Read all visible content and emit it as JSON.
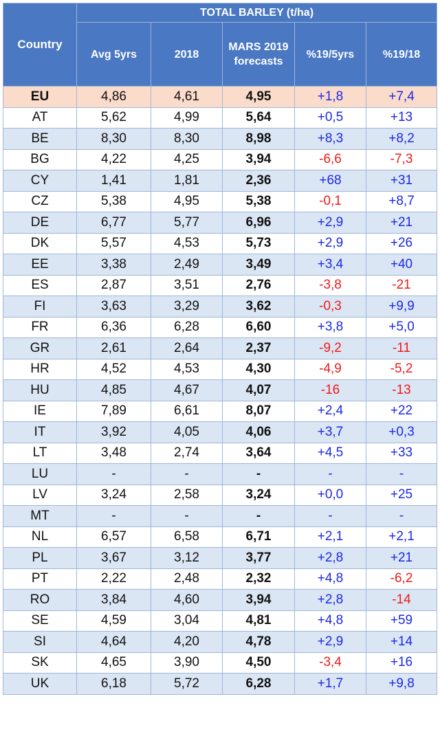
{
  "header": {
    "group_title": "TOTAL BARLEY (t/ha)",
    "col_country": "Country",
    "col_avg": "Avg 5yrs",
    "col_2018": "2018",
    "col_mars_line1": "MARS 2019",
    "col_mars_line2": "forecasts",
    "col_pct5": "%19/5yrs",
    "col_pct18": "%19/18"
  },
  "colors": {
    "header_bg": "#4a78c2",
    "row_alt_bg": "#dbe6f4",
    "eu_row_bg": "#fbdccb",
    "positive": "#1c28e6",
    "negative": "#ee1a1a"
  },
  "rows": [
    {
      "country": "EU",
      "avg": "4,86",
      "y2018": "4,61",
      "mars": "4,95",
      "pct5": "+1,8",
      "pct18": "+7,4"
    },
    {
      "country": "AT",
      "avg": "5,62",
      "y2018": "4,99",
      "mars": "5,64",
      "pct5": "+0,5",
      "pct18": "+13"
    },
    {
      "country": "BE",
      "avg": "8,30",
      "y2018": "8,30",
      "mars": "8,98",
      "pct5": "+8,3",
      "pct18": "+8,2"
    },
    {
      "country": "BG",
      "avg": "4,22",
      "y2018": "4,25",
      "mars": "3,94",
      "pct5": "-6,6",
      "pct18": "-7,3"
    },
    {
      "country": "CY",
      "avg": "1,41",
      "y2018": "1,81",
      "mars": "2,36",
      "pct5": "+68",
      "pct18": "+31"
    },
    {
      "country": "CZ",
      "avg": "5,38",
      "y2018": "4,95",
      "mars": "5,38",
      "pct5": "-0,1",
      "pct18": "+8,7"
    },
    {
      "country": "DE",
      "avg": "6,77",
      "y2018": "5,77",
      "mars": "6,96",
      "pct5": "+2,9",
      "pct18": "+21"
    },
    {
      "country": "DK",
      "avg": "5,57",
      "y2018": "4,53",
      "mars": "5,73",
      "pct5": "+2,9",
      "pct18": "+26"
    },
    {
      "country": "EE",
      "avg": "3,38",
      "y2018": "2,49",
      "mars": "3,49",
      "pct5": "+3,4",
      "pct18": "+40"
    },
    {
      "country": "ES",
      "avg": "2,87",
      "y2018": "3,51",
      "mars": "2,76",
      "pct5": "-3,8",
      "pct18": "-21"
    },
    {
      "country": "FI",
      "avg": "3,63",
      "y2018": "3,29",
      "mars": "3,62",
      "pct5": "-0,3",
      "pct18": "+9,9"
    },
    {
      "country": "FR",
      "avg": "6,36",
      "y2018": "6,28",
      "mars": "6,60",
      "pct5": "+3,8",
      "pct18": "+5,0"
    },
    {
      "country": "GR",
      "avg": "2,61",
      "y2018": "2,64",
      "mars": "2,37",
      "pct5": "-9,2",
      "pct18": "-11"
    },
    {
      "country": "HR",
      "avg": "4,52",
      "y2018": "4,53",
      "mars": "4,30",
      "pct5": "-4,9",
      "pct18": "-5,2"
    },
    {
      "country": "HU",
      "avg": "4,85",
      "y2018": "4,67",
      "mars": "4,07",
      "pct5": "-16",
      "pct18": "-13"
    },
    {
      "country": "IE",
      "avg": "7,89",
      "y2018": "6,61",
      "mars": "8,07",
      "pct5": "+2,4",
      "pct18": "+22"
    },
    {
      "country": "IT",
      "avg": "3,92",
      "y2018": "4,05",
      "mars": "4,06",
      "pct5": "+3,7",
      "pct18": "+0,3"
    },
    {
      "country": "LT",
      "avg": "3,48",
      "y2018": "2,74",
      "mars": "3,64",
      "pct5": "+4,5",
      "pct18": "+33"
    },
    {
      "country": "LU",
      "avg": "-",
      "y2018": "-",
      "mars": "-",
      "pct5": "-",
      "pct18": "-"
    },
    {
      "country": "LV",
      "avg": "3,24",
      "y2018": "2,58",
      "mars": "3,24",
      "pct5": "+0,0",
      "pct18": "+25"
    },
    {
      "country": "MT",
      "avg": "-",
      "y2018": "-",
      "mars": "-",
      "pct5": "-",
      "pct18": "-"
    },
    {
      "country": "NL",
      "avg": "6,57",
      "y2018": "6,58",
      "mars": "6,71",
      "pct5": "+2,1",
      "pct18": "+2,1"
    },
    {
      "country": "PL",
      "avg": "3,67",
      "y2018": "3,12",
      "mars": "3,77",
      "pct5": "+2,8",
      "pct18": "+21"
    },
    {
      "country": "PT",
      "avg": "2,22",
      "y2018": "2,48",
      "mars": "2,32",
      "pct5": "+4,8",
      "pct18": "-6,2"
    },
    {
      "country": "RO",
      "avg": "3,84",
      "y2018": "4,60",
      "mars": "3,94",
      "pct5": "+2,8",
      "pct18": "-14"
    },
    {
      "country": "SE",
      "avg": "4,59",
      "y2018": "3,04",
      "mars": "4,81",
      "pct5": "+4,8",
      "pct18": "+59"
    },
    {
      "country": "SI",
      "avg": "4,64",
      "y2018": "4,20",
      "mars": "4,78",
      "pct5": "+2,9",
      "pct18": "+14"
    },
    {
      "country": "SK",
      "avg": "4,65",
      "y2018": "3,90",
      "mars": "4,50",
      "pct5": "-3,4",
      "pct18": "+16"
    },
    {
      "country": "UK",
      "avg": "6,18",
      "y2018": "5,72",
      "mars": "6,28",
      "pct5": "+1,7",
      "pct18": "+9,8"
    }
  ]
}
